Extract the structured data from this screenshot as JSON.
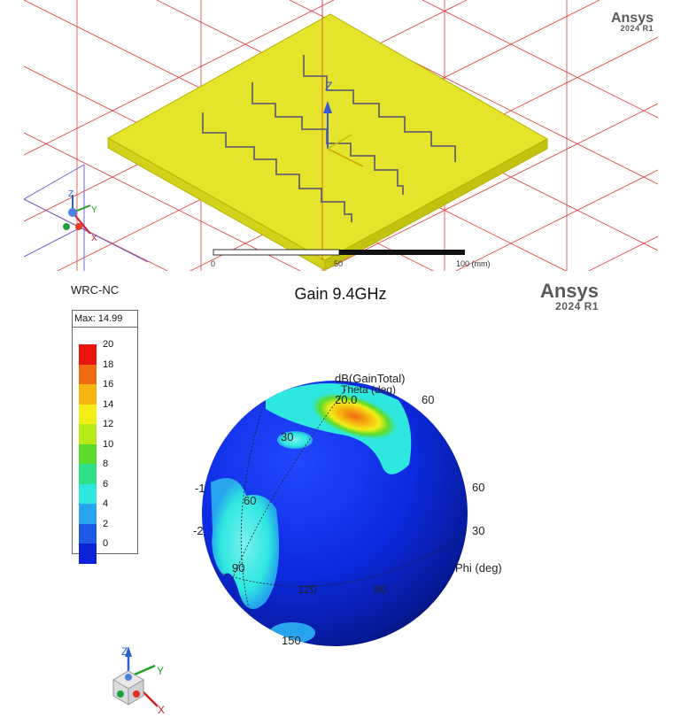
{
  "top_view": {
    "brand": "Ansys",
    "version": "2024 R1",
    "axis_z": "Z",
    "triad": {
      "z": "Z",
      "y": "Y",
      "x": "X"
    },
    "scale_ticks": [
      "0",
      "50",
      "100 (mm)"
    ]
  },
  "plot": {
    "project_name": "WRC-NC",
    "title": "Gain 9.4GHz",
    "brand": "Ansys",
    "version": "2024 R1",
    "max_label": "Max: 14.99",
    "legend": [
      {
        "label": "20",
        "color": "#e8160f"
      },
      {
        "label": "18",
        "color": "#f06a12"
      },
      {
        "label": "16",
        "color": "#f6b410"
      },
      {
        "label": "14",
        "color": "#f2ee16"
      },
      {
        "label": "12",
        "color": "#b8ea1a"
      },
      {
        "label": "10",
        "color": "#5cdc2c"
      },
      {
        "label": "8",
        "color": "#2ee08a"
      },
      {
        "label": "6",
        "color": "#2ee8e0"
      },
      {
        "label": "4",
        "color": "#26a4ee"
      },
      {
        "label": "2",
        "color": "#1e5ae6"
      },
      {
        "label": "0",
        "color": "#0c22d8"
      }
    ],
    "sphere_labels": {
      "quantity": "dB(GainTotal)",
      "theta": "Theta (deg)",
      "phi": "Phi (deg)",
      "r_value": "20.0",
      "angle_30": "30",
      "angle_60": "60",
      "angle_90": "90",
      "angle_120": "120",
      "angle_150": "150",
      "neg_1": "-1",
      "neg_2": "-2",
      "theta_30": "30",
      "theta_60": "60"
    },
    "triad": {
      "z": "Z",
      "y": "Y",
      "x": "X"
    }
  }
}
